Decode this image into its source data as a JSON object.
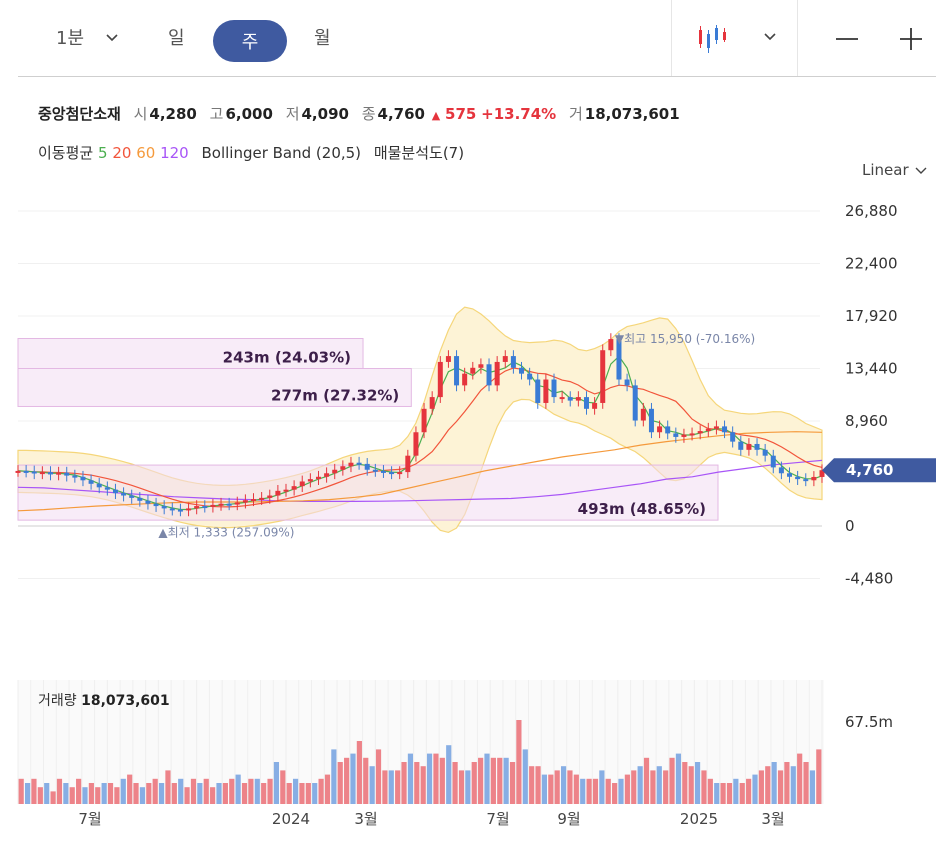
{
  "toolbar": {
    "interval_1": "1분",
    "interval_day": "일",
    "interval_week": "주",
    "interval_month": "월"
  },
  "stock": {
    "name": "중앙첨단소재",
    "open_label": "시",
    "open": "4,280",
    "high_label": "고",
    "high": "6,000",
    "low_label": "저",
    "low": "4,090",
    "close_label": "종",
    "close": "4,760",
    "change_arrow": "▲",
    "change": "575",
    "change_pct": "+13.74%",
    "volume_label": "거",
    "volume": "18,073,601"
  },
  "indicators": {
    "ma_label": "이동평균",
    "ma5": "5",
    "ma20": "20",
    "ma60": "60",
    "ma120": "120",
    "bollinger": "Bollinger Band (20,5)",
    "volume_profile": "매물분석도(7)"
  },
  "scale_mode": "Linear",
  "colors": {
    "up": "#e5343d",
    "down": "#3a7bd5",
    "ma5": "#4caf50",
    "ma20": "#f2553b",
    "ma60": "#f59a3c",
    "ma120": "#a855f7",
    "band_fill": "#fdf3d6",
    "band_line": "#f5d67a",
    "profile": "#f3dcf3",
    "accent": "#3f5aa0"
  },
  "chart_data": {
    "type": "candlestick",
    "ylim": [
      -8960,
      29000
    ],
    "y_ticks": [
      "26,880",
      "22,400",
      "17,920",
      "13,440",
      "8,960",
      "0",
      "-4,480"
    ],
    "x_ticks": [
      "7월",
      "2024",
      "3월",
      "7월",
      "9월",
      "2025",
      "3월"
    ],
    "current_price": "4,760",
    "high_annotation": "▼최고 15,950 (-70.16%)",
    "low_annotation": "▲최저 1,333 (257.09%)",
    "volume_profile": [
      {
        "label": "243m (24.03%)",
        "from": 13440,
        "to": 16000,
        "value": 243
      },
      {
        "label": "277m (27.32%)",
        "from": 10200,
        "to": 13440,
        "value": 277
      },
      {
        "label": "493m (48.65%)",
        "from": 500,
        "to": 5200,
        "value": 493
      }
    ],
    "close_series": [
      4700,
      4650,
      4500,
      4600,
      4400,
      4550,
      4300,
      4200,
      3900,
      3600,
      3300,
      3100,
      2800,
      2600,
      2400,
      2150,
      1900,
      1700,
      1500,
      1400,
      1333,
      1500,
      1700,
      1650,
      1800,
      1900,
      1850,
      2000,
      2200,
      2300,
      2400,
      2600,
      3000,
      3100,
      3400,
      3800,
      4000,
      4200,
      4500,
      4800,
      5100,
      5400,
      5300,
      4800,
      4700,
      4600,
      4500,
      4600,
      6000,
      8000,
      10000,
      11000,
      14000,
      14500,
      12000,
      13000,
      13500,
      13800,
      12000,
      14000,
      14500,
      13500,
      13000,
      12500,
      10500,
      12500,
      11000,
      11000,
      10700,
      11000,
      10000,
      10500,
      15000,
      15950,
      12500,
      12000,
      9000,
      10000,
      8000,
      8500,
      7900,
      7600,
      7800,
      7900,
      8100,
      8300,
      8500,
      8000,
      7200,
      6500,
      7000,
      6500,
      6000,
      5000,
      4500,
      4200,
      4000,
      3900,
      4185,
      4760
    ],
    "ma120_series": [
      3300,
      3250,
      3100,
      2950,
      2800,
      2650,
      2500,
      2400,
      2300,
      2250,
      2150,
      2100,
      2100,
      2100,
      2120,
      2150,
      2200,
      2250,
      2300,
      2350,
      2500,
      2700,
      3000,
      3300,
      3600,
      4000,
      4200,
      4600,
      4900,
      5200,
      5400,
      5600
    ],
    "ma60_series": [
      1300,
      1400,
      1550,
      1700,
      1800,
      1900,
      2000,
      2050,
      2050,
      2050,
      2100,
      2150,
      2250,
      2450,
      2700,
      3200,
      3700,
      4200,
      4700,
      5100,
      5500,
      5900,
      6200,
      6500,
      6900,
      7200,
      7450,
      7700,
      7900,
      8000,
      8050,
      8000
    ],
    "volume": {
      "max_label": "67.5m",
      "label": "거래량",
      "last": "18,073,601",
      "values": [
        6,
        5,
        6,
        4,
        5,
        3,
        6,
        5,
        4,
        6,
        4,
        5,
        4,
        5,
        5,
        4,
        6,
        7,
        5,
        4,
        5,
        6,
        5,
        8,
        5,
        6,
        4,
        6,
        5,
        6,
        4,
        5,
        5,
        6,
        7,
        5,
        6,
        6,
        5,
        6,
        10,
        8,
        5,
        6,
        5,
        5,
        5,
        6,
        7,
        13,
        10,
        11,
        12,
        15,
        11,
        9,
        13,
        8,
        8,
        8,
        10,
        12,
        10,
        9,
        12,
        12,
        11,
        14,
        10,
        8,
        8,
        10,
        11,
        12,
        11,
        11,
        11,
        10,
        20,
        13,
        9,
        9,
        7,
        7,
        8,
        9,
        8,
        7,
        6,
        6,
        6,
        8,
        6,
        5,
        6,
        7,
        8,
        9,
        11,
        8,
        9,
        8,
        11,
        12,
        10,
        9,
        10,
        8,
        6,
        5,
        5,
        5,
        6,
        5,
        6,
        7,
        8,
        9,
        10,
        8,
        10,
        9,
        12,
        10,
        8,
        13
      ]
    }
  }
}
